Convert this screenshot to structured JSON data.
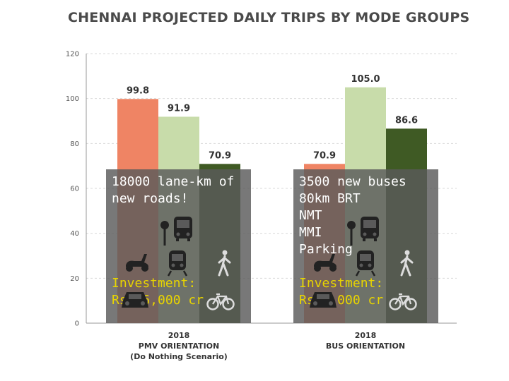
{
  "chart_data": {
    "type": "bar",
    "title": "CHENNAI PROJECTED DAILY TRIPS BY MODE GROUPS",
    "ylim": [
      0,
      120
    ],
    "yticks": [
      0,
      20,
      40,
      60,
      80,
      100,
      120
    ],
    "grid": true,
    "groups": [
      {
        "label_lines": [
          "2018",
          "PMV ORIENTATION",
          "(Do Nothing Scenario)"
        ],
        "values": [
          99.8,
          91.9,
          70.9
        ],
        "labels": [
          "99.8",
          "91.9",
          "70.9"
        ]
      },
      {
        "label_lines": [
          "2018",
          "BUS ORIENTATION"
        ],
        "values": [
          70.9,
          105.0,
          86.6
        ],
        "labels": [
          "70.9",
          "105.0",
          "86.6"
        ]
      }
    ],
    "bar_colors": [
      "#ef8464",
      "#c8dcaa",
      "#3f5a24"
    ]
  },
  "overlays": {
    "left": {
      "lines": [
        "18000 lane-km of",
        "new roads!"
      ],
      "investment": [
        "Investment:",
        "Rs.36,000 cr"
      ]
    },
    "right": {
      "lines": [
        "3500 new buses",
        "80km BRT",
        "NMT",
        "MMI",
        "Parking"
      ],
      "investment": [
        "Investment:",
        "Rs.3,000 cr"
      ]
    }
  },
  "icons": [
    "bus-stop-icon",
    "bus-icon",
    "scooter-icon",
    "train-icon",
    "pedestrian-icon",
    "car-icon",
    "bicycle-icon"
  ],
  "colors": {
    "investment_text": "#e8d400",
    "overlay_bg": "#5a5a5a"
  }
}
